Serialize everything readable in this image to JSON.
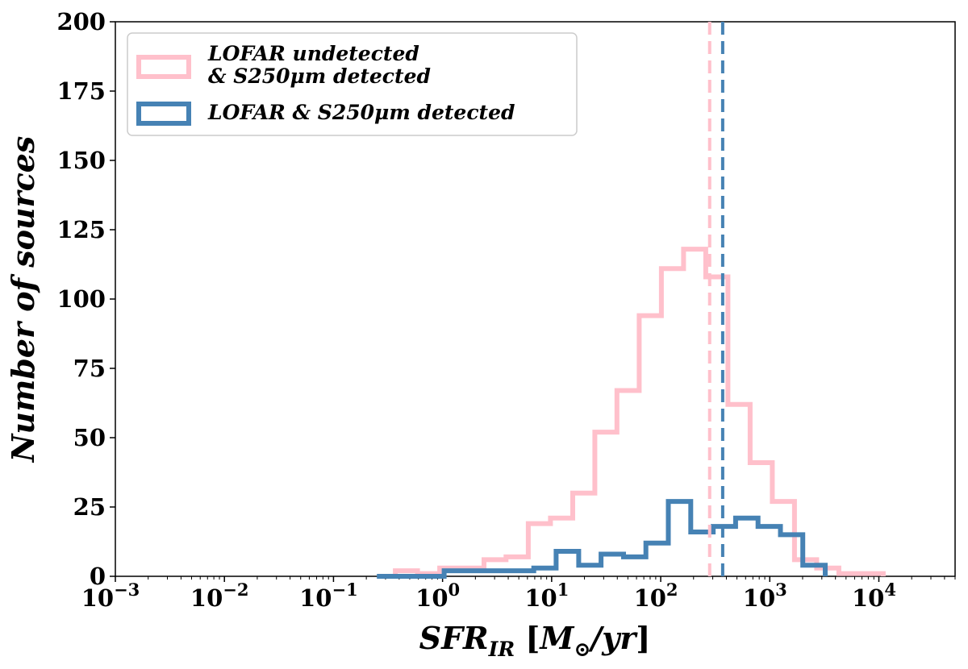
{
  "chart_data": {
    "type": "histogram",
    "title": "",
    "xlabel": "SFR_IR [M_⊙/yr]",
    "ylabel": "Number of sources",
    "x_scale": "log",
    "xlim": [
      0.001,
      50000
    ],
    "ylim": [
      0,
      200
    ],
    "x_ticks": [
      {
        "value": 0.001,
        "base": "10",
        "exp": "−3"
      },
      {
        "value": 0.01,
        "base": "10",
        "exp": "−2"
      },
      {
        "value": 0.1,
        "base": "10",
        "exp": "−1"
      },
      {
        "value": 1,
        "base": "10",
        "exp": "0"
      },
      {
        "value": 10,
        "base": "10",
        "exp": "1"
      },
      {
        "value": 100,
        "base": "10",
        "exp": "2"
      },
      {
        "value": 1000,
        "base": "10",
        "exp": "3"
      },
      {
        "value": 10000,
        "base": "10",
        "exp": "4"
      }
    ],
    "y_ticks": [
      0,
      25,
      50,
      75,
      100,
      125,
      150,
      175,
      200
    ],
    "grid": false,
    "legend_position": "top-left",
    "series": [
      {
        "name": "LOFAR undetected & S250μm detected",
        "legend_lines": [
          "LOFAR undetected",
          "& S250μm detected"
        ],
        "color": "#ffc0cb",
        "bin_edges": [
          0.369,
          0.589,
          0.941,
          1.5,
          2.4,
          3.82,
          6.11,
          9.76,
          15.6,
          24.9,
          39.7,
          63.5,
          101.4,
          162,
          258.7,
          413.3,
          660.2,
          1055,
          1685,
          2691,
          4300,
          6870,
          10970
        ],
        "counts": [
          2,
          1,
          3,
          3,
          6,
          7,
          19,
          21,
          30,
          52,
          67,
          94,
          111,
          118,
          108,
          62,
          41,
          27,
          6,
          3,
          1,
          1
        ],
        "median": 281
      },
      {
        "name": "LOFAR & S250μm detected",
        "legend_lines": [
          "LOFAR & S250μm detected"
        ],
        "color": "#4682b4",
        "bin_edges": [
          0.25,
          0.401,
          0.644,
          1.034,
          1.66,
          2.66,
          4.28,
          6.86,
          11.0,
          17.7,
          28.4,
          45.6,
          73.2,
          117.5,
          188.6,
          302.7,
          485.8,
          779.8,
          1251.6,
          2009,
          3225
        ],
        "counts": [
          0,
          0,
          0,
          2,
          2,
          2,
          2,
          3,
          9,
          4,
          8,
          7,
          12,
          27,
          16,
          18,
          21,
          18,
          15,
          4
        ],
        "median": 370
      }
    ]
  }
}
